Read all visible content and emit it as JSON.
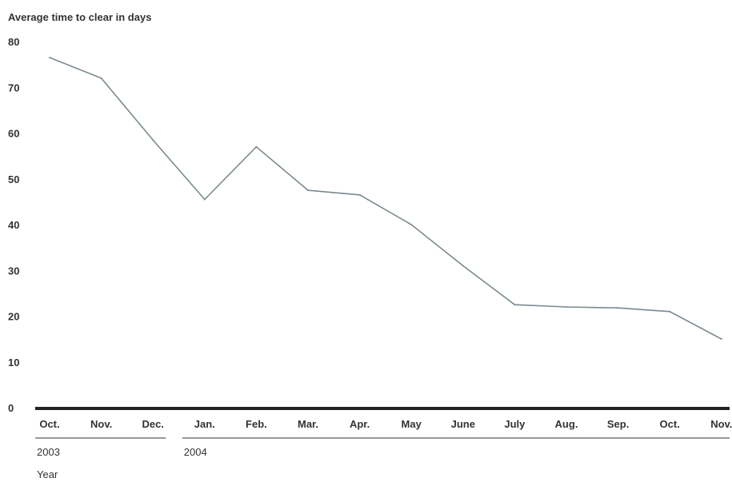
{
  "chart_data": {
    "type": "line",
    "title": "",
    "ylabel": "Average time to clear in days",
    "xlabel": "Year",
    "ylim": [
      0,
      80
    ],
    "yticks": [
      0,
      10,
      20,
      30,
      40,
      50,
      60,
      70,
      80
    ],
    "categories": [
      "Oct.",
      "Nov.",
      "Dec.",
      "Jan.",
      "Feb.",
      "Mar.",
      "Apr.",
      "May",
      "June",
      "July",
      "Aug.",
      "Sep.",
      "Oct.",
      "Nov."
    ],
    "year_groups": [
      {
        "label": "2003",
        "start": 0,
        "end": 2
      },
      {
        "label": "2004",
        "start": 3,
        "end": 13
      }
    ],
    "series": [
      {
        "values": [
          76.5,
          72,
          58.5,
          45.5,
          57,
          47.5,
          46.5,
          40,
          31,
          22.5,
          22,
          21.8,
          21,
          15
        ]
      }
    ],
    "grid": false,
    "colors": {
      "line": "#7a8a8f",
      "axis": "#222222",
      "text": "#333333"
    }
  }
}
